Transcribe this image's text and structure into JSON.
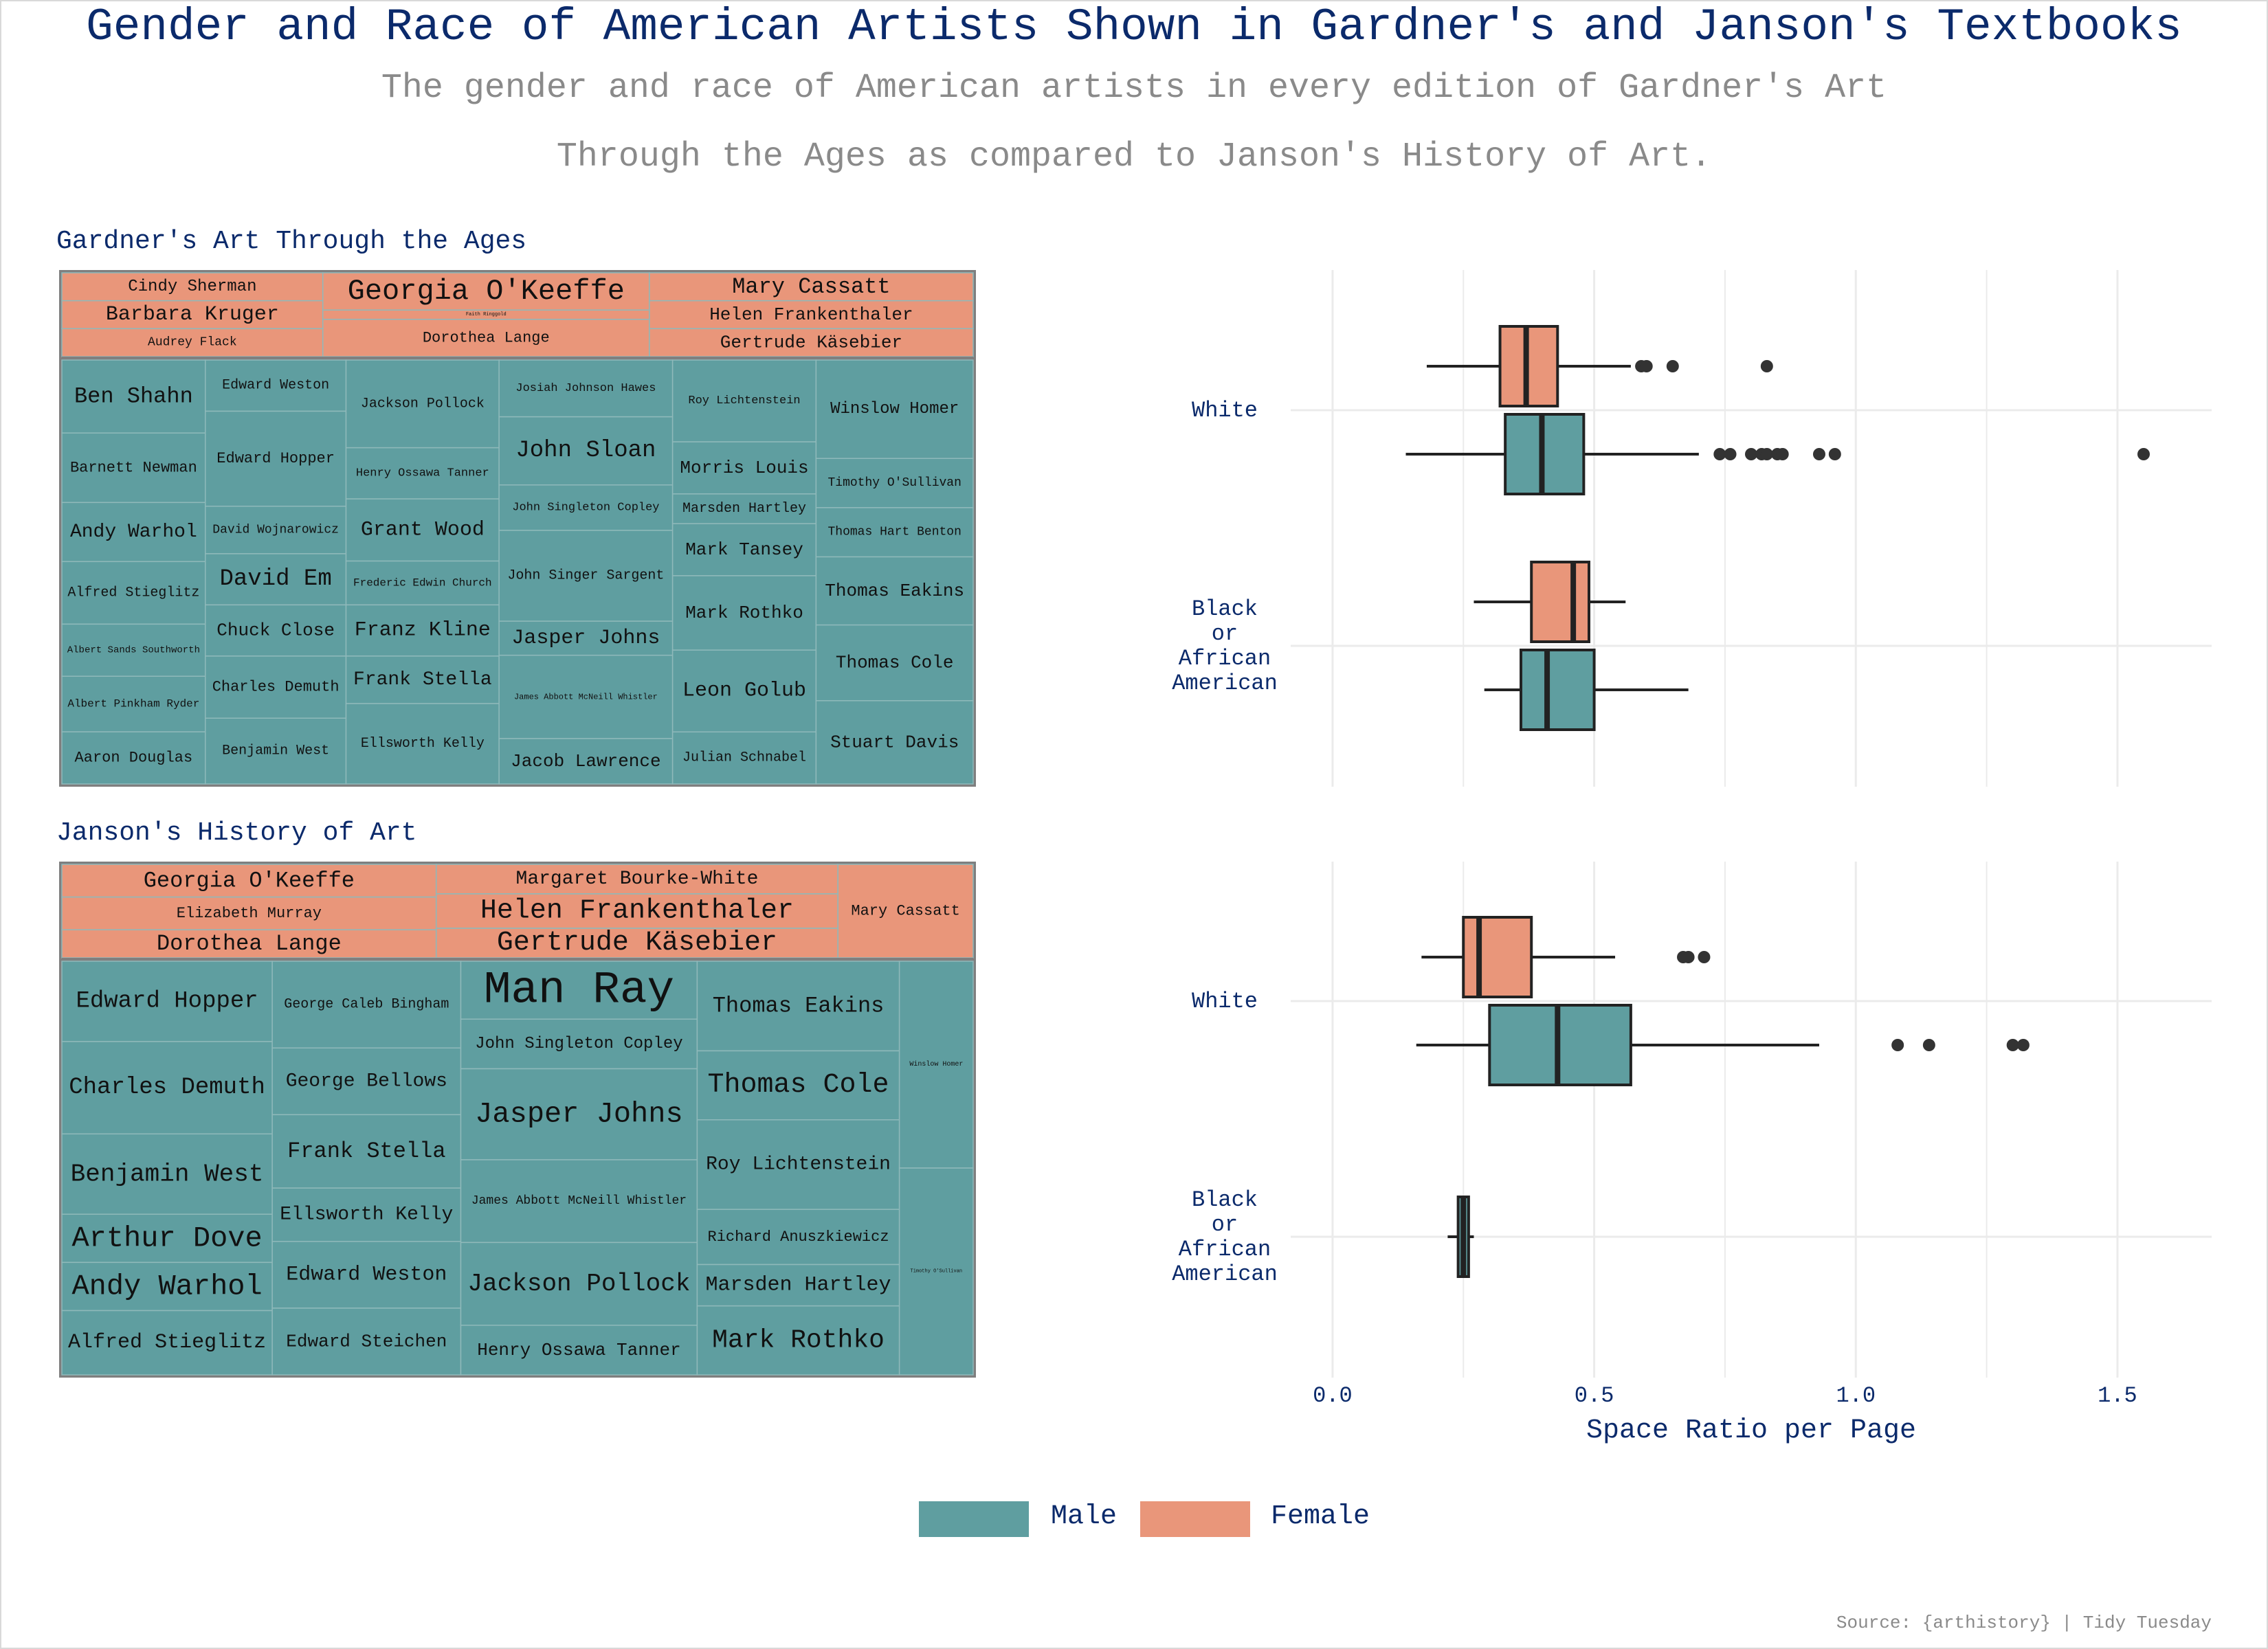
{
  "title": "Gender and Race of American Artists Shown in Gardner's and Janson's Textbooks",
  "subtitle_line1": "The gender and race of American artists in every edition of Gardner's Art",
  "subtitle_line2": "Through the Ages as compared to Janson's History of Art.",
  "source": "Source: {arthistory} | Tidy Tuesday",
  "colors": {
    "male": "#5f9ea0",
    "female": "#e9967a",
    "title": "#0b2a6b",
    "subtitle": "#8a8a8a",
    "grid": "#ebebeb",
    "border": "#7f7f7f"
  },
  "legend": [
    {
      "label": "Male",
      "color": "#5f9ea0"
    },
    {
      "label": "Female",
      "color": "#e9967a"
    }
  ],
  "chart_data": [
    {
      "type": "treemap",
      "title": "Gardner's Art Through the Ages",
      "groups": [
        {
          "gender": "Female",
          "columns": [
            [
              "Cindy Sherman",
              "Barbara Kruger",
              "Audrey Flack"
            ],
            [
              "Georgia O'Keeffe",
              "Faith Ringgold",
              "Dorothea Lange"
            ],
            [
              "Mary Cassatt",
              "Helen Frankenthaler",
              "Gertrude Käsebier"
            ]
          ]
        },
        {
          "gender": "Male",
          "columns": [
            [
              "Ben Shahn",
              "Barnett Newman",
              "Andy Warhol",
              "Alfred Stieglitz",
              "Albert Sands Southworth",
              "Albert Pinkham Ryder",
              "Aaron Douglas"
            ],
            [
              "Edward Weston",
              "Edward Hopper",
              "David Wojnarowicz",
              "David Em",
              "Chuck Close",
              "Charles Demuth",
              "Benjamin West"
            ],
            [
              "Jackson Pollock",
              "Henry Ossawa Tanner",
              "Grant Wood",
              "Frederic Edwin Church",
              "Franz Kline",
              "Frank Stella",
              "Ellsworth Kelly"
            ],
            [
              "Josiah Johnson Hawes",
              "John Sloan",
              "John Singleton Copley",
              "John Singer Sargent",
              "Jasper Johns",
              "James Abbott McNeill Whistler",
              "Jacob Lawrence"
            ],
            [
              "Roy Lichtenstein",
              "Morris Louis",
              "Marsden Hartley",
              "Mark Tansey",
              "Mark Rothko",
              "Leon Golub",
              "Julian Schnabel"
            ],
            [
              "Winslow Homer",
              "Timothy O'Sullivan",
              "Thomas Hart Benton",
              "Thomas Eakins",
              "Thomas Cole",
              "Stuart Davis"
            ]
          ]
        }
      ]
    },
    {
      "type": "treemap",
      "title": "Janson's History of Art",
      "groups": [
        {
          "gender": "Female",
          "columns": [
            [
              "Georgia O'Keeffe",
              "Elizabeth Murray",
              "Dorothea Lange"
            ],
            [
              "Margaret Bourke-White",
              "Helen Frankenthaler",
              "Gertrude Käsebier"
            ],
            [
              "Mary Cassatt"
            ]
          ]
        },
        {
          "gender": "Male",
          "columns": [
            [
              "Edward Hopper",
              "Charles Demuth",
              "Benjamin West",
              "Arthur Dove",
              "Andy Warhol",
              "Alfred Stieglitz"
            ],
            [
              "George Caleb Bingham",
              "George Bellows",
              "Frank Stella",
              "Ellsworth Kelly",
              "Edward Weston",
              "Edward Steichen"
            ],
            [
              "Man Ray",
              "John Singleton Copley",
              "Jasper Johns",
              "James Abbott McNeill Whistler",
              "Jackson Pollock",
              "Henry Ossawa Tanner"
            ],
            [
              "Thomas Eakins",
              "Thomas Cole",
              "Roy Lichtenstein",
              "Richard Anuszkiewicz",
              "Marsden Hartley",
              "Mark Rothko"
            ],
            [
              "Winslow Homer",
              "Timothy O'Sullivan"
            ]
          ]
        }
      ]
    },
    {
      "type": "boxplot",
      "panel": "Gardner's Art Through the Ages",
      "xlabel": "Space Ratio per Page",
      "xlim": [
        -0.08,
        1.68
      ],
      "xticks": [
        0.0,
        0.5,
        1.0,
        1.5
      ],
      "xtick_labels": [
        "0.0",
        "0.5",
        "1.0",
        "1.5"
      ],
      "categories": [
        "White",
        "Black or African American"
      ],
      "boxes": [
        {
          "race": "White",
          "gender": "Female",
          "whisker_low": 0.18,
          "q1": 0.32,
          "median": 0.37,
          "q3": 0.43,
          "whisker_high": 0.57,
          "outliers": [
            0.59,
            0.6,
            0.65,
            0.83
          ]
        },
        {
          "race": "White",
          "gender": "Male",
          "whisker_low": 0.14,
          "q1": 0.33,
          "median": 0.4,
          "q3": 0.48,
          "whisker_high": 0.7,
          "outliers": [
            0.74,
            0.76,
            0.8,
            0.82,
            0.83,
            0.85,
            0.86,
            0.93,
            0.96,
            1.55
          ]
        },
        {
          "race": "Black or African American",
          "gender": "Female",
          "whisker_low": 0.27,
          "q1": 0.38,
          "median": 0.46,
          "q3": 0.49,
          "whisker_high": 0.56,
          "outliers": []
        },
        {
          "race": "Black or African American",
          "gender": "Male",
          "whisker_low": 0.29,
          "q1": 0.36,
          "median": 0.41,
          "q3": 0.5,
          "whisker_high": 0.68,
          "outliers": []
        }
      ]
    },
    {
      "type": "boxplot",
      "panel": "Janson's History of Art",
      "xlabel": "Space Ratio per Page",
      "xlim": [
        -0.08,
        1.68
      ],
      "xticks": [
        0.0,
        0.5,
        1.0,
        1.5
      ],
      "xtick_labels": [
        "0.0",
        "0.5",
        "1.0",
        "1.5"
      ],
      "categories": [
        "White",
        "Black or African American"
      ],
      "boxes": [
        {
          "race": "White",
          "gender": "Female",
          "whisker_low": 0.17,
          "q1": 0.25,
          "median": 0.28,
          "q3": 0.38,
          "whisker_high": 0.54,
          "outliers": [
            0.67,
            0.68,
            0.71
          ]
        },
        {
          "race": "White",
          "gender": "Male",
          "whisker_low": 0.16,
          "q1": 0.3,
          "median": 0.43,
          "q3": 0.57,
          "whisker_high": 0.93,
          "outliers": [
            1.08,
            1.14,
            1.3,
            1.32
          ]
        },
        {
          "race": "Black or African American",
          "gender": "Male",
          "whisker_low": 0.22,
          "q1": 0.24,
          "median": 0.25,
          "q3": 0.26,
          "whisker_high": 0.27,
          "outliers": []
        }
      ]
    }
  ]
}
